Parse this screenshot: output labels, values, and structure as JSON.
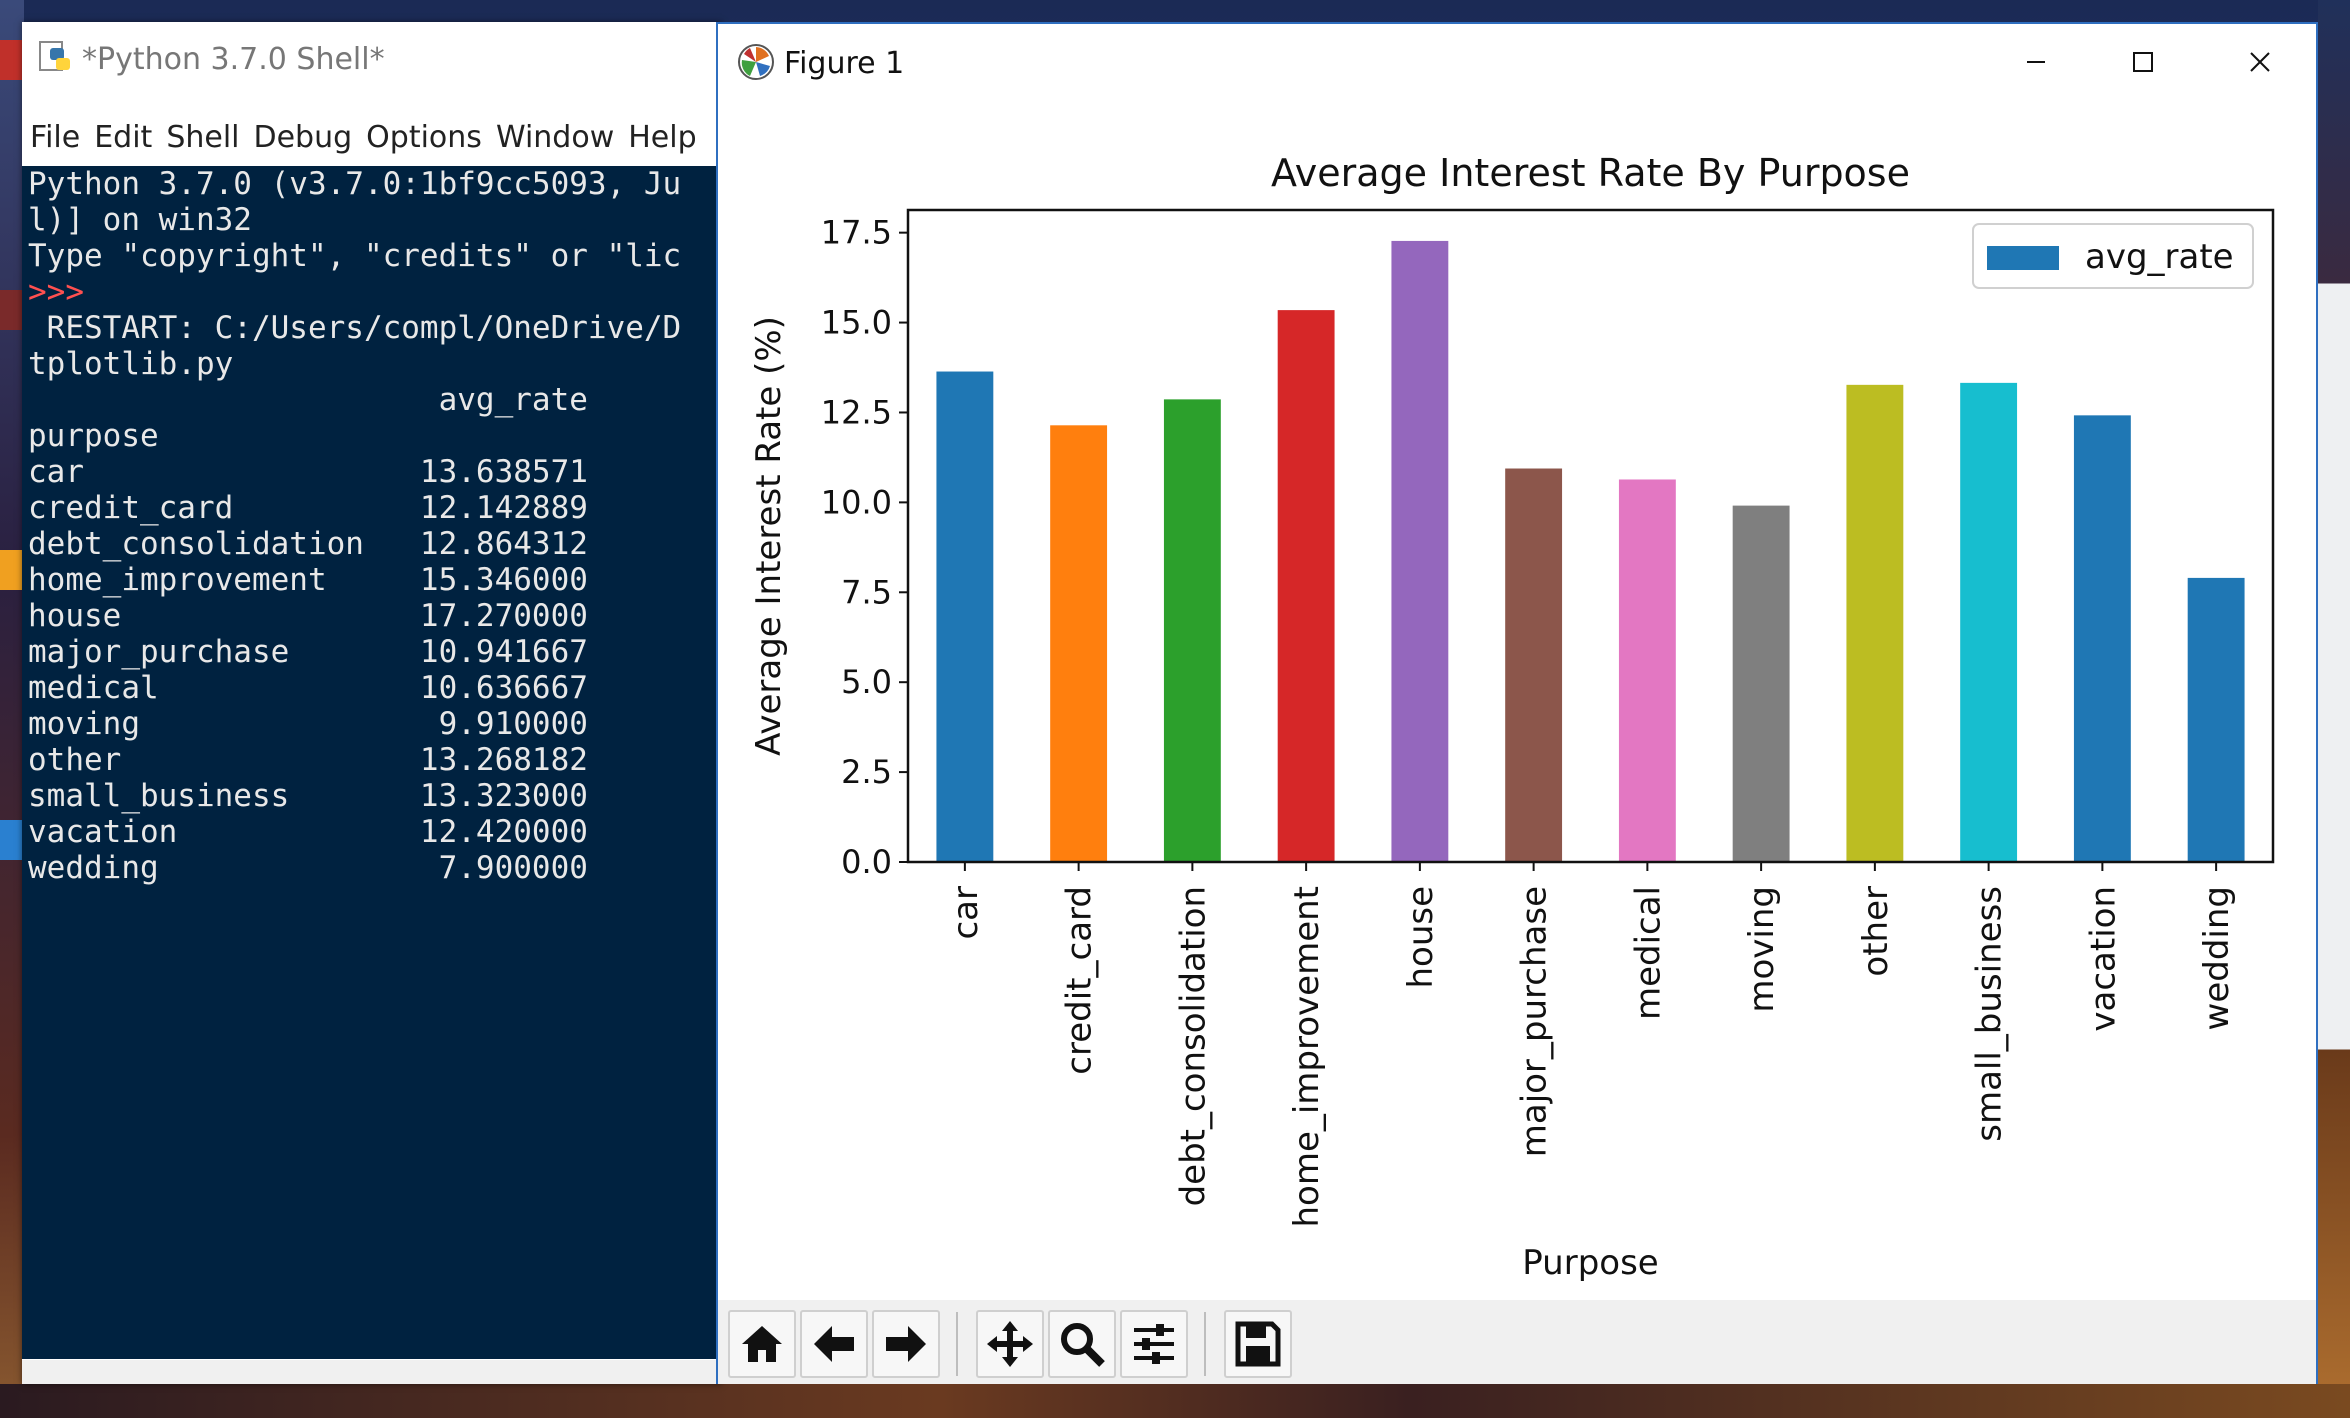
{
  "shell": {
    "title": "*Python 3.7.0 Shell*",
    "menu": [
      "File",
      "Edit",
      "Shell",
      "Debug",
      "Options",
      "Window",
      "Help"
    ],
    "lines": [
      "Python 3.7.0 (v3.7.0:1bf9cc5093, Ju",
      "l)] on win32",
      "Type \"copyright\", \"credits\" or \"lic",
      ">>> ",
      " RESTART: C:/Users/compl/OneDrive/D",
      "tplotlib.py",
      "                      avg_rate",
      "purpose",
      "car                  13.638571",
      "credit_card          12.142889",
      "debt_consolidation   12.864312",
      "home_improvement     15.346000",
      "house                17.270000",
      "major_purchase       10.941667",
      "medical              10.636667",
      "moving                9.910000",
      "other                13.268182",
      "small_business       13.323000",
      "vacation             12.420000",
      "wedding               7.900000"
    ]
  },
  "figure": {
    "title": "Figure 1",
    "buttons": {
      "minimize": "minimize-icon",
      "maximize": "maximize-icon",
      "close": "close-icon"
    },
    "toolbar": [
      "home-icon",
      "back-arrow-icon",
      "forward-arrow-icon",
      "pan-icon",
      "zoom-icon",
      "configure-subplots-icon",
      "save-icon"
    ]
  },
  "chart_data": {
    "type": "bar",
    "title": "Average Interest Rate By Purpose",
    "xlabel": "Purpose",
    "ylabel": "Average Interest Rate (%)",
    "ylim": [
      0,
      18.13
    ],
    "yticks": [
      "0.0",
      "2.5",
      "5.0",
      "7.5",
      "10.0",
      "12.5",
      "15.0",
      "17.5"
    ],
    "legend": {
      "position": "top-right",
      "entries": [
        "avg_rate"
      ]
    },
    "grid": false,
    "categories": [
      "car",
      "credit_card",
      "debt_consolidation",
      "home_improvement",
      "house",
      "major_purchase",
      "medical",
      "moving",
      "other",
      "small_business",
      "vacation",
      "wedding"
    ],
    "values": [
      13.638571,
      12.142889,
      12.864312,
      15.346,
      17.27,
      10.941667,
      10.636667,
      9.91,
      13.268182,
      13.323,
      12.42,
      7.9
    ],
    "colors": [
      "#1f77b4",
      "#ff7f0e",
      "#2ca02c",
      "#d62728",
      "#9467bd",
      "#8c564b",
      "#e377c2",
      "#7f7f7f",
      "#bcbd22",
      "#17becf",
      "#1f77b4",
      "#1f77b4"
    ]
  }
}
